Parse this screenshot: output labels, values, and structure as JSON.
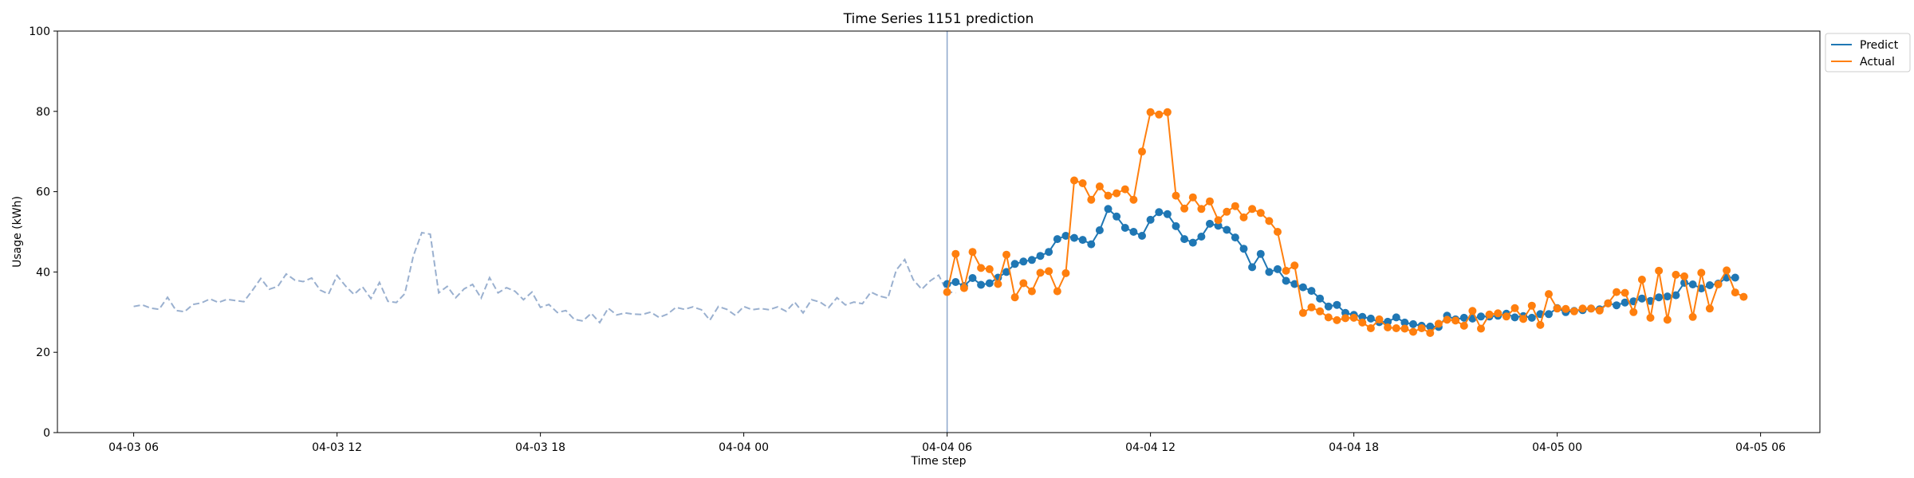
{
  "chart_data": {
    "type": "line",
    "title": "Time Series 1151 prediction",
    "xlabel": "Time step",
    "ylabel": "Usage (kWh)",
    "ylim": [
      0,
      100
    ],
    "xlim": [
      "2019-04-03 03:45",
      "2019-04-05 07:45"
    ],
    "x_ticks": [
      {
        "t": "2019-04-03 06:00",
        "label": "04-03 06"
      },
      {
        "t": "2019-04-03 12:00",
        "label": "04-03 12"
      },
      {
        "t": "2019-04-03 18:00",
        "label": "04-03 18"
      },
      {
        "t": "2019-04-04 00:00",
        "label": "04-04 00"
      },
      {
        "t": "2019-04-04 06:00",
        "label": "04-04 06"
      },
      {
        "t": "2019-04-04 12:00",
        "label": "04-04 12"
      },
      {
        "t": "2019-04-04 18:00",
        "label": "04-04 18"
      },
      {
        "t": "2019-04-05 00:00",
        "label": "04-05 00"
      },
      {
        "t": "2019-04-05 06:00",
        "label": "04-05 06"
      }
    ],
    "y_ticks": [
      0,
      20,
      40,
      60,
      80,
      100
    ],
    "legend": "top-right, outside plot",
    "forecast_start": "2019-04-04 06:00",
    "colors": {
      "history": "#9ab0cf",
      "predict": "#1f77b4",
      "actual": "#ff7f0e",
      "vline": "#8da6cc"
    },
    "history": {
      "start": "2019-04-03 06:00",
      "step_minutes": 15,
      "values": [
        31.4,
        31.8,
        31.0,
        30.7,
        33.7,
        30.4,
        30.1,
        31.9,
        32.3,
        33.3,
        32.4,
        33.2,
        32.9,
        32.6,
        35.4,
        38.4,
        35.7,
        36.4,
        39.5,
        38.0,
        37.6,
        38.5,
        35.5,
        34.5,
        39.1,
        36.5,
        34.4,
        36.3,
        33.4,
        37.4,
        32.7,
        32.4,
        34.6,
        44.0,
        49.8,
        49.4,
        34.8,
        36.4,
        33.6,
        35.8,
        36.9,
        33.5,
        38.6,
        34.8,
        36.1,
        35.2,
        33.1,
        35.0,
        31.2,
        31.9,
        29.9,
        30.4,
        28.2,
        27.8,
        29.7,
        27.4,
        31.0,
        29.3,
        29.8,
        29.5,
        29.4,
        30.0,
        28.7,
        29.5,
        31.2,
        30.7,
        31.3,
        30.6,
        28.0,
        31.4,
        30.7,
        29.2,
        31.4,
        30.6,
        30.9,
        30.6,
        31.3,
        30.2,
        32.5,
        29.8,
        33.1,
        32.5,
        31.1,
        33.6,
        31.8,
        32.5,
        32.1,
        35.0,
        34.0,
        33.5,
        40.5,
        43.1,
        38.1,
        35.7,
        37.8,
        39.2,
        35.1,
        34.8
      ]
    },
    "series": [
      {
        "name": "Predict",
        "start": "2019-04-04 06:00",
        "step_minutes": 15,
        "values": [
          37.0,
          37.5,
          36.5,
          38.5,
          36.8,
          37.2,
          38.6,
          40.0,
          42.0,
          42.6,
          43.0,
          44.0,
          45.0,
          48.2,
          49.0,
          48.5,
          48.0,
          46.9,
          50.4,
          55.7,
          53.8,
          51.0,
          50.0,
          49.0,
          53.0,
          54.9,
          54.4,
          51.4,
          48.2,
          47.3,
          48.8,
          52.0,
          51.5,
          50.5,
          48.6,
          45.8,
          41.2,
          44.5,
          40.0,
          40.7,
          37.8,
          37.0,
          36.2,
          35.3,
          33.4,
          31.4,
          31.8,
          29.8,
          29.3,
          28.8,
          28.4,
          27.5,
          27.6,
          28.7,
          27.4,
          27.0,
          26.6,
          26.4,
          26.3,
          29.1,
          28.2,
          28.6,
          28.4,
          28.9,
          28.9,
          29.1,
          29.6,
          28.7,
          29.0,
          28.6,
          29.5,
          29.5,
          31.0,
          30.0,
          30.3,
          30.5,
          30.9,
          30.7,
          32.2,
          31.7,
          32.4,
          32.7,
          33.4,
          32.8,
          33.7,
          33.9,
          34.2,
          37.3,
          36.9,
          35.9,
          36.7,
          37.1,
          38.6,
          38.6
        ]
      },
      {
        "name": "Actual",
        "start": "2019-04-04 06:00",
        "step_minutes": 15,
        "values": [
          35.0,
          44.5,
          36.0,
          45.0,
          41.0,
          40.7,
          37.0,
          44.3,
          33.7,
          37.2,
          35.2,
          39.8,
          40.2,
          35.2,
          39.7,
          62.8,
          62.1,
          58.0,
          61.3,
          59.0,
          59.6,
          60.6,
          58.0,
          70.0,
          79.8,
          79.2,
          79.8,
          59.0,
          55.8,
          58.6,
          55.7,
          57.6,
          52.9,
          55.0,
          56.4,
          53.6,
          55.7,
          54.7,
          52.7,
          50.0,
          40.3,
          41.6,
          29.8,
          31.2,
          30.2,
          28.7,
          28.0,
          28.5,
          28.6,
          27.4,
          26.0,
          28.2,
          26.2,
          26.0,
          25.9,
          25.1,
          26.0,
          24.8,
          27.1,
          28.1,
          27.9,
          26.6,
          30.3,
          25.9,
          29.4,
          29.7,
          28.9,
          31.0,
          28.3,
          31.6,
          26.8,
          34.5,
          30.9,
          30.8,
          30.2,
          30.9,
          30.9,
          30.4,
          32.2,
          35.0,
          34.8,
          30.0,
          38.1,
          28.6,
          40.3,
          28.1,
          39.3,
          38.9,
          28.8,
          39.8,
          30.9,
          36.9,
          40.4,
          34.9,
          33.8
        ]
      }
    ]
  }
}
